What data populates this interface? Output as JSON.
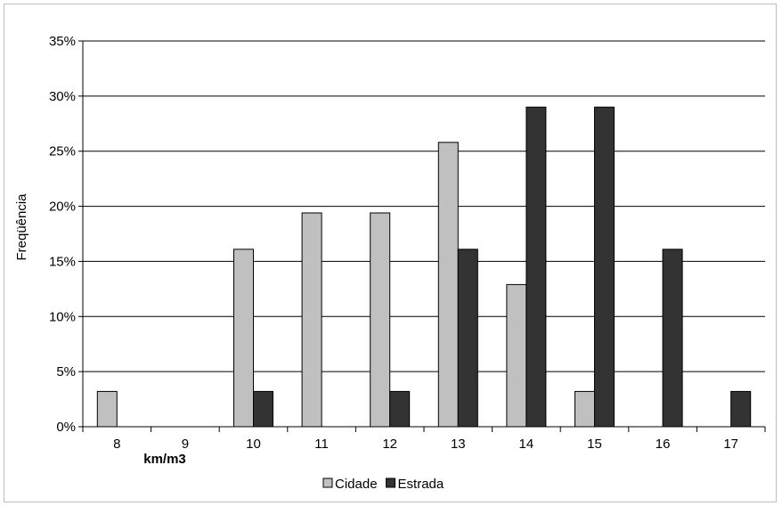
{
  "chart_data": {
    "type": "bar",
    "title": "",
    "xlabel": "km/m3",
    "ylabel": "Freqüência",
    "categories": [
      "8",
      "9",
      "10",
      "11",
      "12",
      "13",
      "14",
      "15",
      "16",
      "17"
    ],
    "series": [
      {
        "name": "Cidade",
        "color": "#c0c0c0",
        "values": [
          3.2,
          0,
          16.1,
          19.4,
          19.4,
          25.8,
          12.9,
          3.2,
          0,
          0
        ]
      },
      {
        "name": "Estrada",
        "color": "#333333",
        "values": [
          0,
          0,
          3.2,
          0,
          3.2,
          16.1,
          29.0,
          29.0,
          16.1,
          3.2
        ]
      }
    ],
    "ylim": [
      0,
      35
    ],
    "yticks": [
      0,
      5,
      10,
      15,
      20,
      25,
      30,
      35
    ],
    "ytick_labels": [
      "0%",
      "5%",
      "10%",
      "15%",
      "20%",
      "25%",
      "30%",
      "35%"
    ],
    "grid": true,
    "legend_position": "bottom"
  }
}
